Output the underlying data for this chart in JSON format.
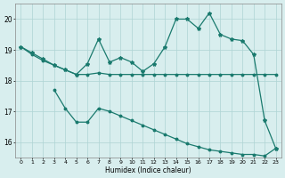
{
  "xlabel": "Humidex (Indice chaleur)",
  "background_color": "#d8eeee",
  "grid_color": "#aed4d4",
  "line_color": "#1a7a6e",
  "xlim": [
    -0.5,
    23.5
  ],
  "ylim": [
    15.5,
    20.5
  ],
  "yticks": [
    16,
    17,
    18,
    19,
    20
  ],
  "xticks": [
    0,
    1,
    2,
    3,
    4,
    5,
    6,
    7,
    8,
    9,
    10,
    11,
    12,
    13,
    14,
    15,
    16,
    17,
    18,
    19,
    20,
    21,
    22,
    23
  ],
  "series1_x": [
    0,
    1,
    2,
    3,
    4,
    5,
    6,
    7,
    8,
    9,
    10,
    11,
    12,
    13,
    14,
    15,
    16,
    17,
    18,
    19,
    20,
    21,
    22,
    23
  ],
  "series1_y": [
    19.1,
    18.85,
    18.65,
    18.5,
    18.35,
    18.2,
    18.2,
    18.25,
    18.2,
    18.2,
    18.2,
    18.2,
    18.2,
    18.2,
    18.2,
    18.2,
    18.2,
    18.2,
    18.2,
    18.2,
    18.2,
    18.2,
    18.2,
    18.2
  ],
  "series2_x": [
    0,
    1,
    2,
    3,
    4,
    5,
    6,
    7,
    8,
    9,
    10,
    11,
    12,
    13,
    14,
    15,
    16,
    17,
    18,
    19,
    20,
    21,
    22,
    23
  ],
  "series2_y": [
    19.1,
    18.9,
    18.7,
    18.5,
    18.35,
    18.2,
    18.55,
    19.35,
    18.6,
    18.75,
    18.6,
    18.3,
    18.55,
    19.1,
    20.0,
    20.0,
    19.7,
    20.2,
    19.5,
    19.35,
    19.3,
    18.85,
    16.7,
    15.8
  ],
  "series3_x": [
    3,
    4,
    5,
    6,
    7,
    8,
    9,
    10,
    11,
    12,
    13,
    14,
    15,
    16,
    17,
    18,
    19,
    20,
    21,
    22,
    23
  ],
  "series3_y": [
    17.7,
    17.1,
    16.65,
    16.65,
    17.1,
    17.0,
    16.85,
    16.7,
    16.55,
    16.4,
    16.25,
    16.1,
    15.95,
    15.85,
    15.75,
    15.7,
    15.65,
    15.6,
    15.6,
    15.55,
    15.8
  ]
}
